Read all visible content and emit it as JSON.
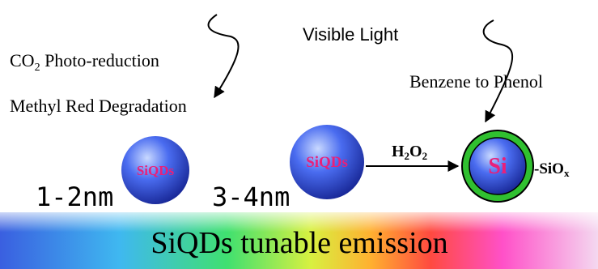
{
  "labels": {
    "co2": {
      "main": "CO",
      "sub": "2",
      "rest": " Photo-reduction"
    },
    "methyl_red": "Methyl Red Degradation",
    "visible_light": "Visible Light",
    "benzene": "Benzene to Phenol",
    "sphere_1": "SiQDs",
    "sphere_2": "SiQDs",
    "size_1": "1-2nm",
    "size_2": "3-4nm",
    "h2o2": {
      "a": "H",
      "a_sub": "2",
      "b": "O",
      "b_sub": "2"
    },
    "core": "Si",
    "shell": {
      "main": "-SiO",
      "sub": "x"
    },
    "banner": "SiQDs tunable emission"
  }
}
